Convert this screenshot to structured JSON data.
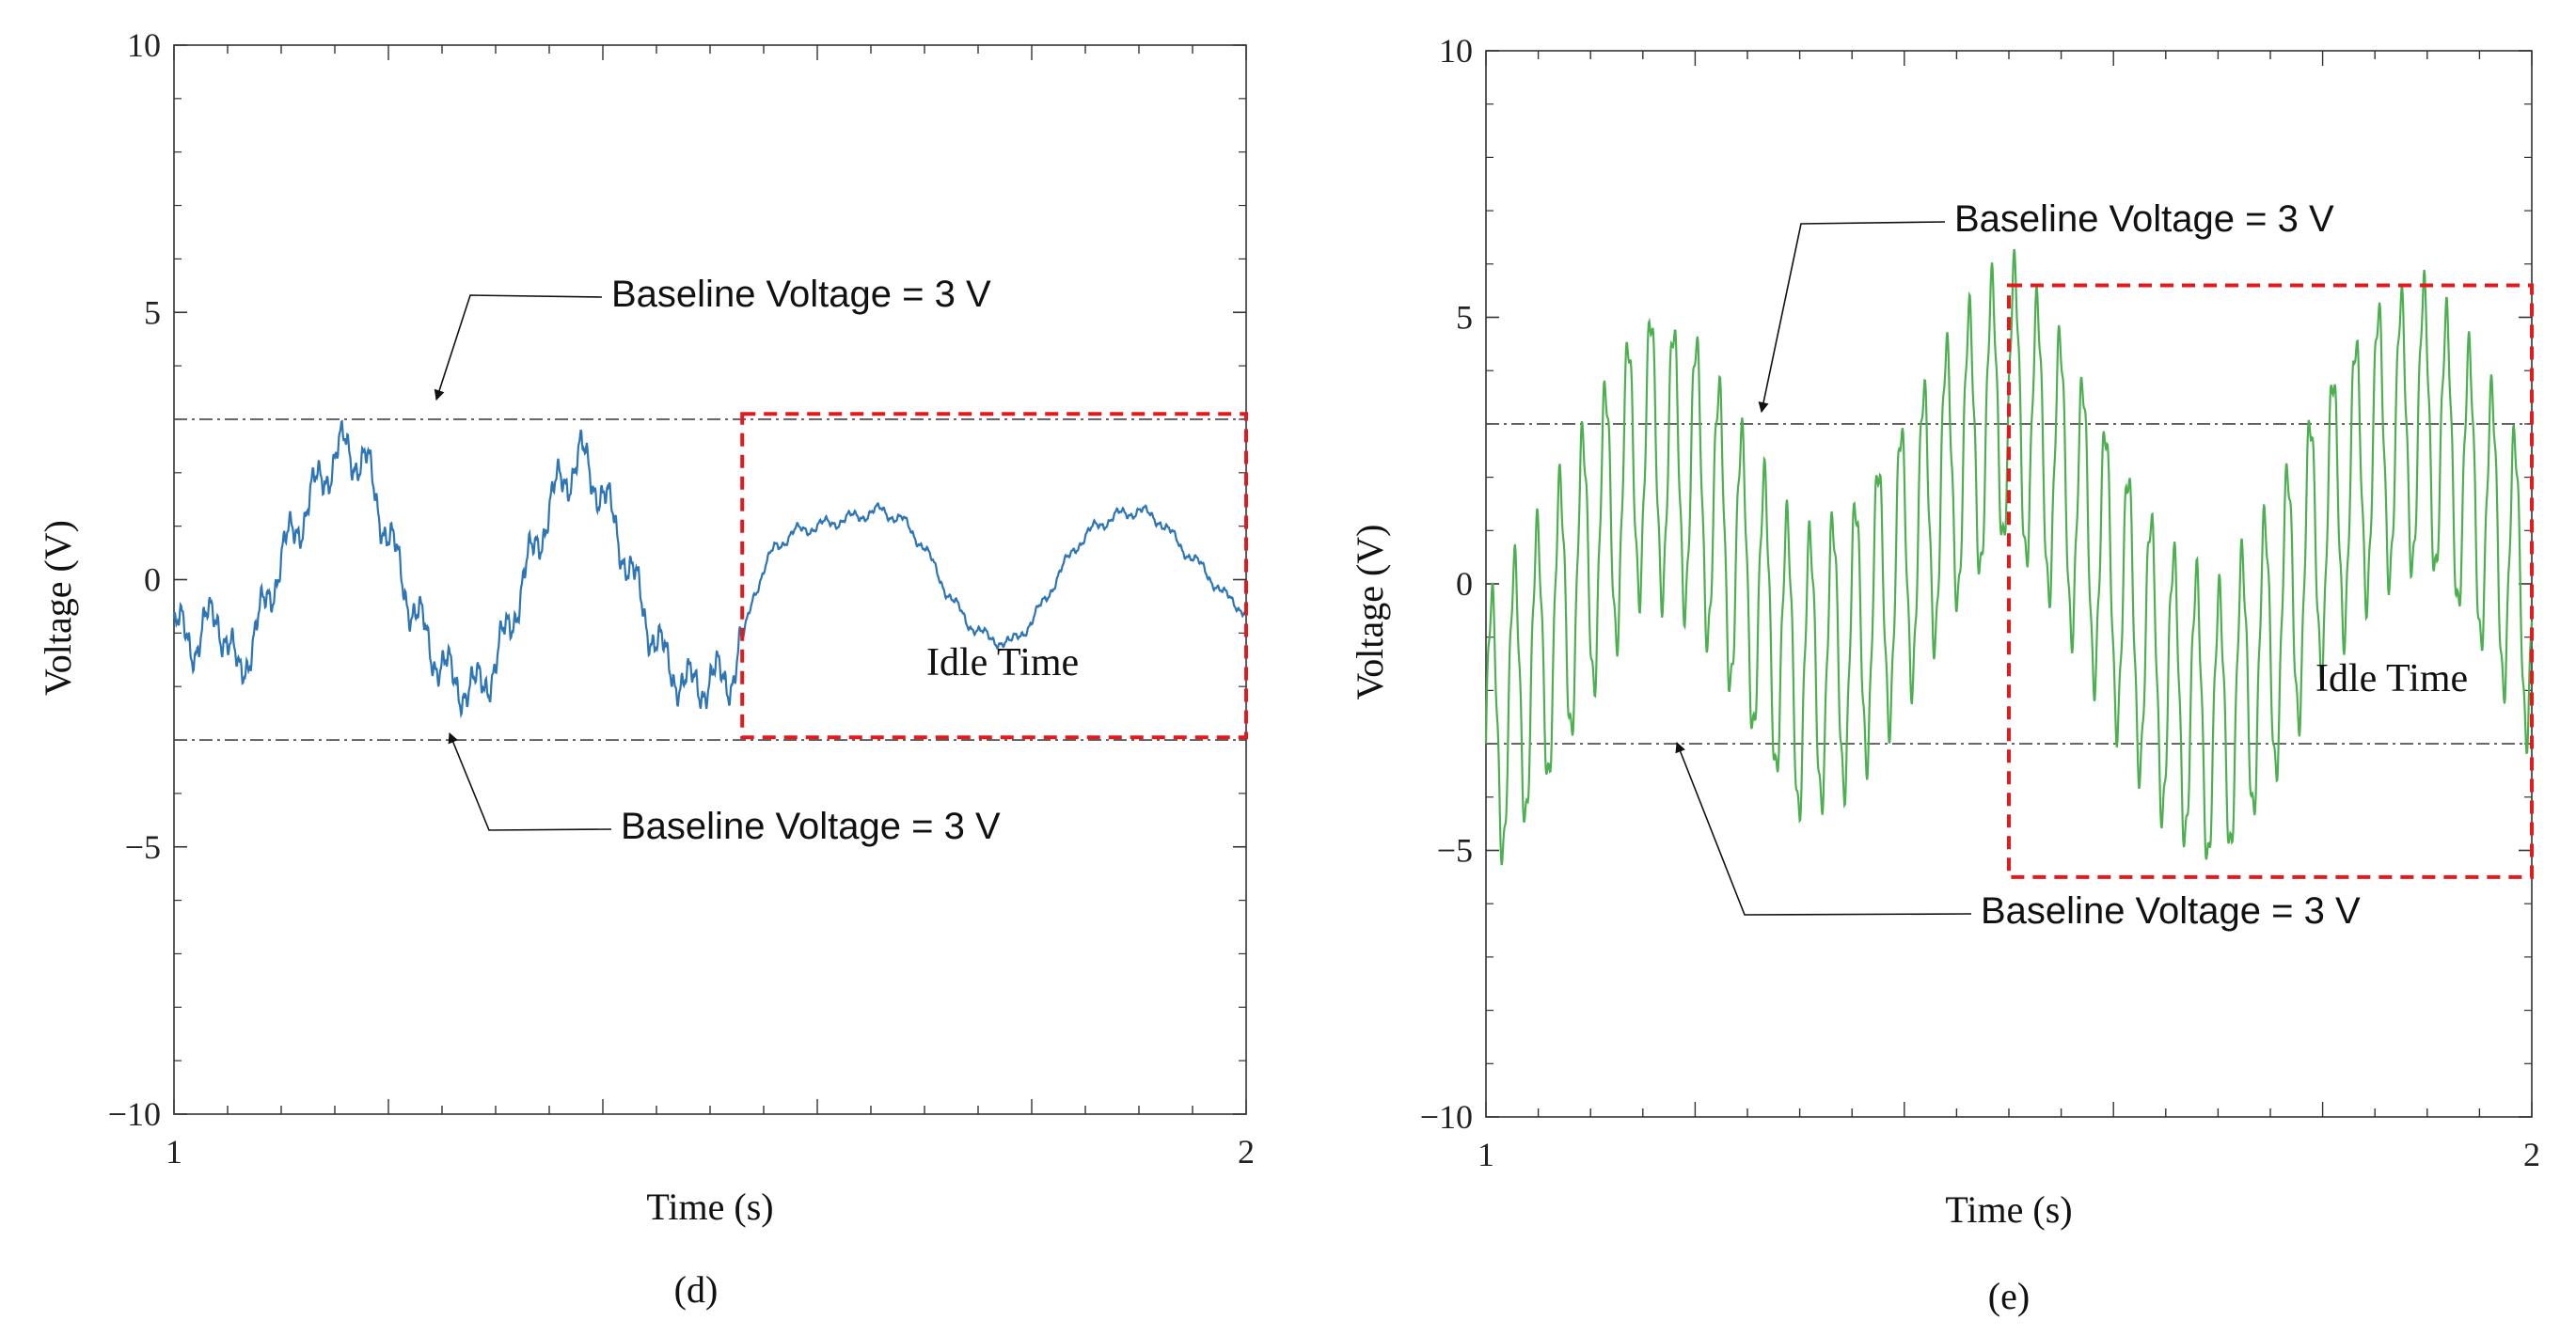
{
  "chart_data": [
    {
      "type": "line",
      "panel_label": "(d)",
      "xlabel": "Time (s)",
      "ylabel": "Voltage (V)",
      "xlim": [
        1,
        2
      ],
      "ylim": [
        -10,
        10
      ],
      "xticks": [
        "1",
        "2"
      ],
      "yticks": [
        "10",
        "5",
        "0",
        "−5",
        "−10"
      ],
      "ytick_values": [
        10,
        5,
        0,
        -5,
        -10
      ],
      "baselines": [
        3,
        -3
      ],
      "annotations": [
        {
          "text": "Baseline Voltage = 3 V",
          "points_to": 3
        },
        {
          "text": "Baseline Voltage = 3 V",
          "points_to": -3
        }
      ],
      "idle_region": {
        "label": "Idle Time",
        "x": [
          1.53,
          2.0
        ],
        "y": [
          -2.95,
          3.1
        ]
      },
      "series": [
        {
          "name": "Voltage",
          "color": "#2e75b6",
          "x": [
            1.0,
            1.02,
            1.04,
            1.06,
            1.08,
            1.1,
            1.12,
            1.14,
            1.16,
            1.18,
            1.2,
            1.22,
            1.24,
            1.26,
            1.28,
            1.3,
            1.32,
            1.34,
            1.36,
            1.38,
            1.4,
            1.42,
            1.44,
            1.46,
            1.48,
            1.5,
            1.52,
            1.53,
            1.54,
            1.56,
            1.58,
            1.6,
            1.62,
            1.64,
            1.66,
            1.68,
            1.7,
            1.72,
            1.74,
            1.76,
            1.78,
            1.8,
            1.82,
            1.84,
            1.86,
            1.88,
            1.9,
            1.92,
            1.94,
            1.96,
            1.98,
            2.0
          ],
          "values": [
            -0.9,
            -1.2,
            -0.6,
            -1.8,
            -0.8,
            0.4,
            1.2,
            2.0,
            2.5,
            2.1,
            0.8,
            -0.4,
            -1.3,
            -1.9,
            -2.1,
            -1.6,
            -0.4,
            0.8,
            1.8,
            2.3,
            1.6,
            0.5,
            -0.7,
            -1.6,
            -2.0,
            -1.9,
            -1.8,
            -1.2,
            -0.3,
            0.6,
            0.9,
            1.0,
            1.1,
            1.2,
            1.3,
            1.1,
            0.6,
            -0.2,
            -0.8,
            -1.1,
            -1.2,
            -0.8,
            -0.1,
            0.6,
            1.0,
            1.2,
            1.3,
            1.1,
            0.6,
            0.2,
            -0.3,
            -0.6
          ],
          "ripple": {
            "amplitude": 0.5,
            "cycles": 40,
            "until_x": 1.53,
            "after_amplitude": 0.13
          }
        }
      ]
    },
    {
      "type": "line",
      "panel_label": "(e)",
      "xlabel": "Time (s)",
      "ylabel": "Voltage (V)",
      "xlim": [
        1,
        2
      ],
      "ylim": [
        -10,
        10
      ],
      "xticks": [
        "1",
        "2"
      ],
      "yticks": [
        "10",
        "5",
        "0",
        "−5",
        "−10"
      ],
      "ytick_values": [
        10,
        5,
        0,
        -5,
        -10
      ],
      "baselines": [
        3,
        -3
      ],
      "annotations": [
        {
          "text": "Baseline Voltage = 3 V",
          "points_to": 3
        },
        {
          "text": "Baseline Voltage = 3 V",
          "points_to": -3
        }
      ],
      "idle_region": {
        "label": "Idle Time",
        "x": [
          1.5,
          2.0
        ],
        "y": [
          -5.5,
          5.6
        ]
      },
      "series": [
        {
          "name": "Voltage",
          "color": "#4caf50",
          "x": [
            1.0,
            1.05,
            1.1,
            1.15,
            1.2,
            1.25,
            1.3,
            1.35,
            1.4,
            1.45,
            1.5,
            1.55,
            1.6,
            1.65,
            1.7,
            1.75,
            1.8,
            1.85,
            1.9,
            1.95,
            2.0
          ],
          "values": [
            -3.0,
            -1.5,
            0.5,
            2.5,
            2.0,
            0.0,
            -1.8,
            -1.2,
            0.4,
            2.2,
            3.5,
            2.0,
            0.0,
            -1.9,
            -2.8,
            -1.2,
            1.0,
            2.5,
            3.0,
            1.5,
            -0.5
          ],
          "ripple": {
            "amplitude": 2.6,
            "cycles": 46
          }
        }
      ]
    }
  ]
}
